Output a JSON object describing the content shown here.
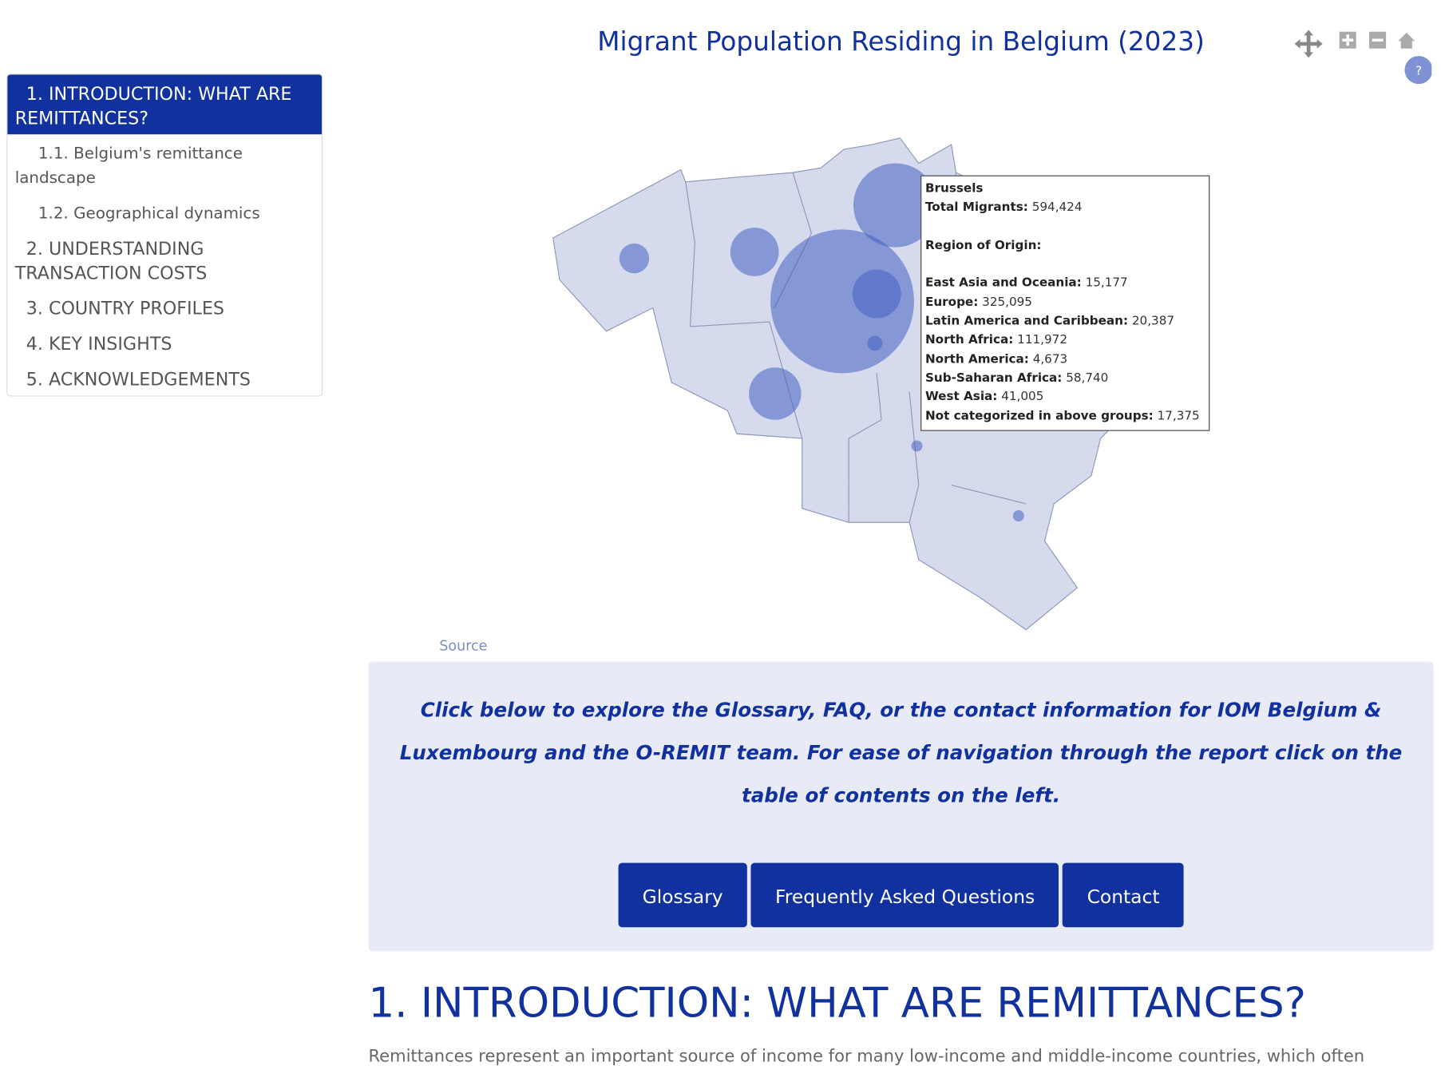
{
  "toc": {
    "items": [
      {
        "label": "1. INTRODUCTION: WHAT ARE REMITTANCES?",
        "level": 1
      },
      {
        "label": "1.1. Belgium's remittance landscape",
        "level": 2
      },
      {
        "label": "1.2. Geographical dynamics",
        "level": 2
      },
      {
        "label": "2. UNDERSTANDING TRANSACTION COSTS",
        "level": 1
      },
      {
        "label": "3. COUNTRY PROFILES",
        "level": 1
      },
      {
        "label": "4. KEY INSIGHTS",
        "level": 1
      },
      {
        "label": "5. ACKNOWLEDGEMENTS",
        "level": 1
      }
    ]
  },
  "map": {
    "title": "Migrant Population Residing in Belgium (2023)",
    "source": "Source",
    "help": "?",
    "tooltip": {
      "name": "Brussels",
      "total_label": "Total Migrants:",
      "total": "594,424",
      "origin_heading": "Region of Origin:",
      "rows": [
        {
          "label": "East Asia and Oceania:",
          "value": "15,177"
        },
        {
          "label": "Europe:",
          "value": "325,095"
        },
        {
          "label": "Latin America and Caribbean:",
          "value": "20,387"
        },
        {
          "label": "North Africa:",
          "value": "111,972"
        },
        {
          "label": "North America:",
          "value": "4,673"
        },
        {
          "label": "Sub-Saharan Africa:",
          "value": "58,740"
        },
        {
          "label": "West Asia:",
          "value": "41,005"
        },
        {
          "label": "Not categorized in above groups:",
          "value": "17,375"
        }
      ]
    }
  },
  "notice": {
    "text": "Click below to explore the Glossary, FAQ, or the contact information for IOM Belgium & Luxembourg and the O-REMIT team. For ease of navigation through the report click on the table of contents on the left."
  },
  "buttons": [
    "Glossary",
    "Frequently Asked Questions",
    "Contact"
  ],
  "section": {
    "heading": "1. INTRODUCTION: WHAT ARE REMITTANCES?",
    "paragraph": "Remittances represent an important source of income for many low-income and middle-income countries, which often"
  }
}
